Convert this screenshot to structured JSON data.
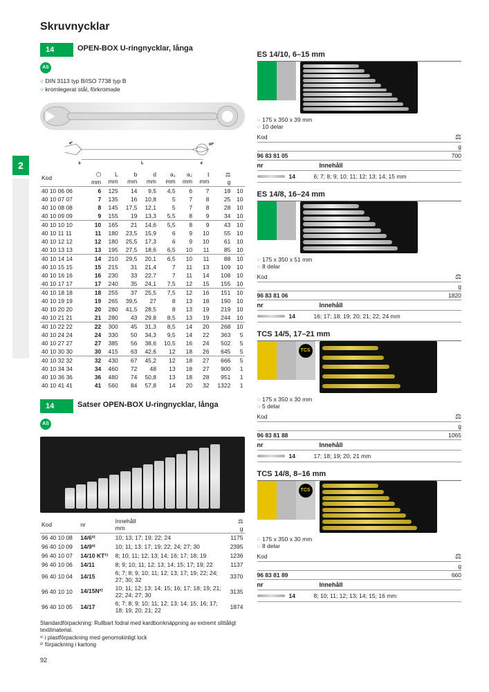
{
  "page": {
    "title": "Skruvnycklar",
    "side_tab": "2",
    "number": "92"
  },
  "left": {
    "sec1": {
      "num": "14",
      "title": "OPEN-BOX U-ringnycklar, långa",
      "bullets": [
        "DIN 3113 typ B/ISO 7738 typ B",
        "kromlegerat stål, förkromade"
      ],
      "table": {
        "headers": [
          "Kod",
          "⬡\nmm",
          "L\nmm",
          "b\nmm",
          "d\nmm",
          "a₁\nmm",
          "a₂\nmm",
          "t\nmm",
          "⚖\ng",
          ""
        ],
        "groups": [
          [
            [
              "40 10 06 06",
              "6",
              "125",
              "14",
              "9,5",
              "4,5",
              "6",
              "7",
              "18",
              "10"
            ],
            [
              "40 10 07 07",
              "7",
              "135",
              "16",
              "10,8",
              "5",
              "7",
              "8",
              "25",
              "10"
            ],
            [
              "40 10 08 08",
              "8",
              "145",
              "17,5",
              "12,1",
              "5",
              "7",
              "8",
              "28",
              "10"
            ],
            [
              "40 10 09 09",
              "9",
              "155",
              "19",
              "13,3",
              "5,5",
              "8",
              "9",
              "34",
              "10"
            ]
          ],
          [
            [
              "40 10 10 10",
              "10",
              "165",
              "21",
              "14,6",
              "5,5",
              "8",
              "9",
              "43",
              "10"
            ],
            [
              "40 10 11 11",
              "11",
              "180",
              "23,5",
              "15,9",
              "6",
              "9",
              "10",
              "55",
              "10"
            ],
            [
              "40 10 12 12",
              "12",
              "180",
              "25,5",
              "17,3",
              "6",
              "9",
              "10",
              "61",
              "10"
            ],
            [
              "40 10 13 13",
              "13",
              "195",
              "27,5",
              "18,6",
              "6,5",
              "10",
              "11",
              "85",
              "10"
            ]
          ],
          [
            [
              "40 10 14 14",
              "14",
              "210",
              "29,5",
              "20,1",
              "6,5",
              "10",
              "11",
              "88",
              "10"
            ],
            [
              "40 10 15 15",
              "15",
              "215",
              "31",
              "21,4",
              "7",
              "11",
              "13",
              "109",
              "10"
            ],
            [
              "40 10 16 16",
              "16",
              "230",
              "33",
              "22,7",
              "7",
              "11",
              "14",
              "108",
              "10"
            ],
            [
              "40 10 17 17",
              "17",
              "240",
              "35",
              "24,1",
              "7,5",
              "12",
              "15",
              "155",
              "10"
            ]
          ],
          [
            [
              "40 10 18 18",
              "18",
              "255",
              "37",
              "25,5",
              "7,5",
              "12",
              "16",
              "151",
              "10"
            ],
            [
              "40 10 19 19",
              "19",
              "265",
              "39,5",
              "27",
              "8",
              "13",
              "18",
              "190",
              "10"
            ],
            [
              "40 10 20 20",
              "20",
              "280",
              "41,5",
              "28,5",
              "8",
              "13",
              "19",
              "219",
              "10"
            ],
            [
              "40 10 21 21",
              "21",
              "280",
              "43",
              "29,8",
              "8,5",
              "13",
              "19",
              "244",
              "10"
            ]
          ],
          [
            [
              "40 10 22 22",
              "22",
              "300",
              "45",
              "31,3",
              "8,5",
              "14",
              "20",
              "268",
              "10"
            ],
            [
              "40 10 24 24",
              "24",
              "330",
              "50",
              "34,3",
              "9,5",
              "14",
              "22",
              "363",
              "5"
            ],
            [
              "40 10 27 27",
              "27",
              "385",
              "56",
              "38,6",
              "10,5",
              "16",
              "24",
              "502",
              "5"
            ],
            [
              "40 10 30 30",
              "30",
              "415",
              "63",
              "42,6",
              "12",
              "18",
              "26",
              "645",
              "5"
            ]
          ],
          [
            [
              "40 10 32 32",
              "32",
              "430",
              "67",
              "45,2",
              "12",
              "18",
              "27",
              "666",
              "5"
            ],
            [
              "40 10 34 34",
              "34",
              "460",
              "72",
              "48",
              "13",
              "18",
              "27",
              "900",
              "1"
            ],
            [
              "40 10 36 36",
              "36",
              "480",
              "74",
              "50,8",
              "13",
              "18",
              "28",
              "951",
              "1"
            ],
            [
              "40 10 41 41",
              "41",
              "560",
              "84",
              "57,8",
              "14",
              "20",
              "32",
              "1322",
              "1"
            ]
          ]
        ]
      }
    },
    "sec2": {
      "num": "14",
      "title": "Satser OPEN-BOX U-ringnycklar, långa",
      "table": {
        "headers": [
          "Kod",
          "nr",
          "Innehåll\nmm",
          "⚖\ng"
        ],
        "rows": [
          [
            "96 40 10 08",
            "14/6²⁾",
            "10; 13; 17; 19; 22; 24",
            "1175"
          ],
          [
            "96 40 10 09",
            "14/9²⁾",
            "10; 11; 13; 17; 19; 22; 24; 27; 30",
            "2395"
          ],
          [
            "96 40 10 07",
            "14/10 KT¹⁾",
            "8; 10; 11; 12; 13; 14; 16; 17; 18; 19",
            "1236"
          ],
          [
            "96 40 10 06",
            "14/11",
            "8; 9; 10; 11; 12; 13; 14; 15; 17; 19; 22",
            "1137"
          ],
          [
            "96 40 10 04",
            "14/15",
            "6; 7; 8; 9; 10; 11; 12; 13; 17; 19; 22; 24; 27; 30; 32",
            "3370"
          ],
          [
            "96 40 10 10",
            "14/15N²⁾",
            "10; 11; 12; 13; 14; 15; 16; 17; 18; 19; 21; 22; 24; 27; 30",
            "3135"
          ],
          [
            "96 40 10 05",
            "14/17",
            "6; 7; 8; 9; 10; 11; 12; 13; 14; 15; 16; 17; 18; 19; 20; 21; 22",
            "1874"
          ]
        ]
      },
      "footnote": "Standardförpackning: Rullbart fodral med kardborrknäppning av extremt slittåligt textilmaterial.\n¹⁾ i plastförpackning med genomskinligt lock\n²⁾ förpackning i kartong"
    }
  },
  "right": {
    "items": [
      {
        "title": "ES 14/10, 6–15 mm",
        "swatches": [
          "green",
          "grey"
        ],
        "bullets": [
          "175 x 350 x 39 mm",
          "10 delar"
        ],
        "kod": "96 83 81 05",
        "weight": "700",
        "nr": "14",
        "innehall": "6; 7; 8; 9; 10; 11; 12; 13; 14; 15 mm",
        "tray_tools": 10,
        "tray_style": "plain"
      },
      {
        "title": "ES 14/8, 16–24 mm",
        "swatches": [
          "green",
          "grey"
        ],
        "bullets": [
          "175 x 350 x 51 mm",
          "8 delar"
        ],
        "kod": "96 83 81 06",
        "weight": "1820",
        "nr": "14",
        "innehall": "16; 17; 18; 19; 20; 21; 22; 24 mm",
        "tray_tools": 8,
        "tray_style": "plain"
      },
      {
        "title": "TCS 14/5, 17–21 mm",
        "swatches": [
          "yellow",
          "grey",
          "grey2"
        ],
        "bullets": [
          "175 x 350 x 30 mm",
          "5 delar"
        ],
        "kod": "96 83 81 88",
        "weight": "1065",
        "nr": "14",
        "innehall": "17; 18; 19; 20; 21 mm",
        "tray_tools": 5,
        "tray_style": "yellow",
        "tcs": true
      },
      {
        "title": "TCS 14/8, 8–16 mm",
        "swatches": [
          "yellow",
          "grey",
          "grey2"
        ],
        "bullets": [
          "175 x 350 x 30 mm",
          "8 delar"
        ],
        "kod": "96 83 81 89",
        "weight": "660",
        "nr": "14",
        "innehall": "8; 10; 11; 12; 13; 14; 15; 16 mm",
        "tray_tools": 8,
        "tray_style": "yellow",
        "tcs": true
      }
    ],
    "labels": {
      "kod": "Kod",
      "g": "g",
      "nr": "nr",
      "innehall": "Innehåll"
    }
  }
}
